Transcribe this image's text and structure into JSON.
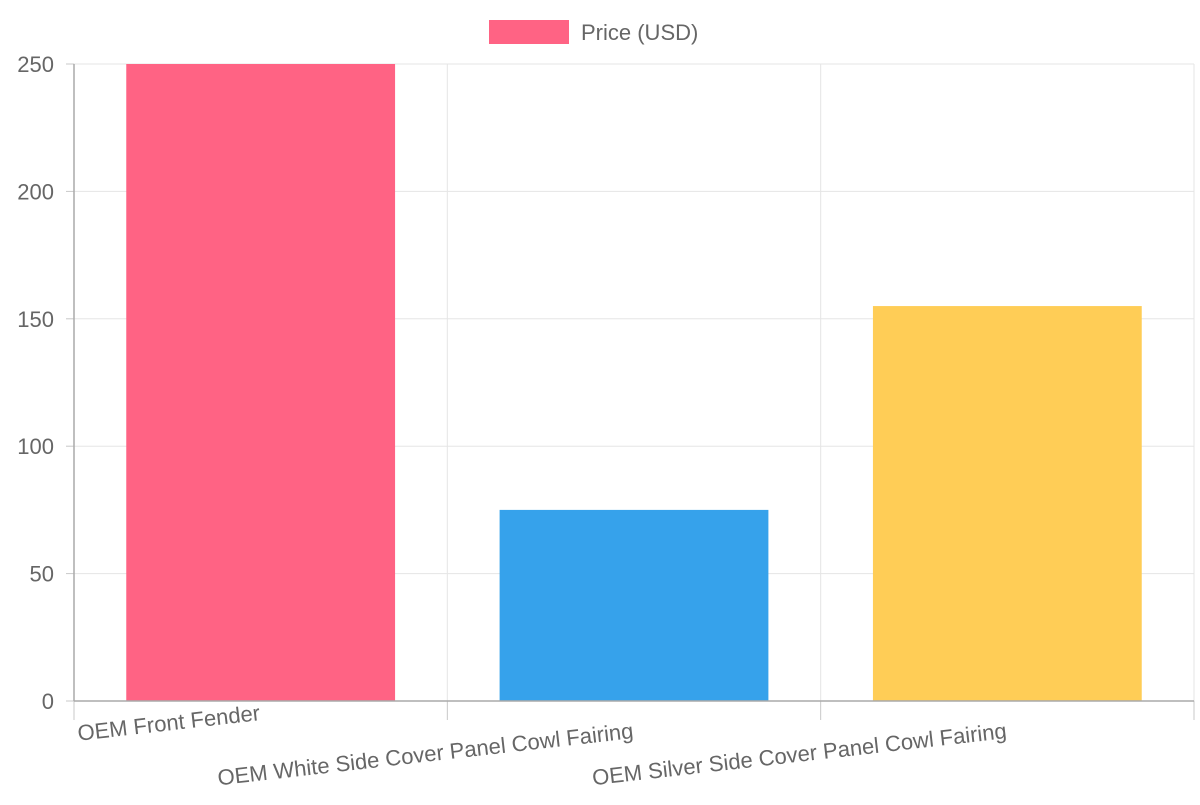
{
  "chart_data": {
    "type": "bar",
    "categories": [
      "OEM Front Fender",
      "OEM White Side Cover Panel Cowl Fairing",
      "OEM Silver Side Cover Panel Cowl Fairing"
    ],
    "series": [
      {
        "name": "Price (USD)",
        "values": [
          250,
          75,
          155
        ]
      }
    ],
    "bar_colors": [
      "#ff6384",
      "#36a2eb",
      "#ffcd56"
    ],
    "legend_color": "#ff6384",
    "ylim": [
      0,
      250
    ],
    "yticks": [
      0,
      50,
      100,
      150,
      200,
      250
    ],
    "grid": true,
    "legend_position": "top",
    "title": "",
    "xlabel": "",
    "ylabel": ""
  }
}
